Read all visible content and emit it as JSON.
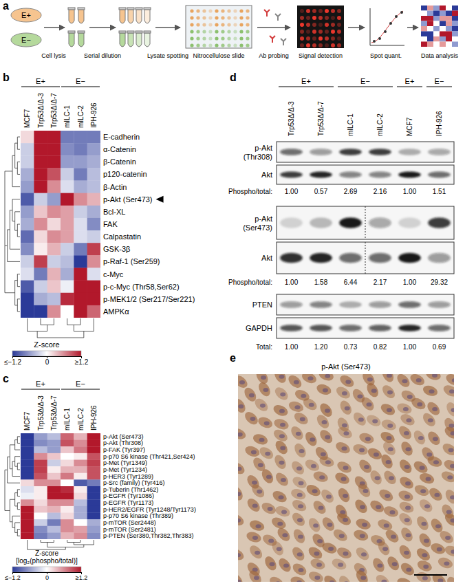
{
  "chart_data": [
    {
      "type": "heatmap",
      "panel": "b",
      "groups": [
        {
          "label": "E+",
          "start": 0,
          "end": 2
        },
        {
          "label": "E−",
          "start": 3,
          "end": 5
        }
      ],
      "columns": [
        "MCF7",
        "Trp53Δ/Δ-3",
        "Trp53Δ/Δ-7",
        "mILC-1",
        "mILC-2",
        "IPH-926"
      ],
      "rows": [
        "E-cadherin",
        "α-Catenin",
        "β-Catenin",
        "p120-catenin",
        "β-Actin",
        "p-Akt (Ser473)",
        "Bcl-XL",
        "FAK",
        "Calpastatin",
        "GSK-3β",
        "p-Raf-1 (Ser259)",
        "c-Myc",
        "p-c-Myc (Thr58,Ser62)",
        "p-MEK1/2 (Ser217/Ser221)",
        "AMPKα"
      ],
      "cells": [
        [
          0.2,
          1.2,
          1.2,
          -0.8,
          -0.8,
          -0.8
        ],
        [
          -0.3,
          1.2,
          1.2,
          -0.7,
          -0.8,
          -0.6
        ],
        [
          -0.3,
          1.2,
          1.2,
          -0.6,
          -0.6,
          -0.5
        ],
        [
          -0.5,
          1.2,
          0.9,
          -0.3,
          -0.8,
          -0.4
        ],
        [
          -0.6,
          1.2,
          0.6,
          -0.2,
          -0.5,
          -0.4
        ],
        [
          -1.0,
          -0.3,
          -0.6,
          1.2,
          0.6,
          0.4
        ],
        [
          -0.6,
          0.3,
          0.6,
          0.5,
          -0.3,
          -0.5
        ],
        [
          -0.5,
          0.6,
          0.2,
          0.5,
          -0.2,
          -0.7
        ],
        [
          -0.9,
          0.2,
          0.6,
          0.5,
          -0.2,
          -0.3
        ],
        [
          -0.7,
          0.1,
          0.4,
          -0.3,
          -0.8,
          1.0
        ],
        [
          -0.3,
          1.0,
          -0.3,
          -0.4,
          -1.2,
          0.6
        ],
        [
          -0.2,
          -0.8,
          0.4,
          -0.5,
          1.2,
          -0.2
        ],
        [
          -1.0,
          -0.3,
          0.3,
          -0.1,
          1.2,
          1.2
        ],
        [
          -1.2,
          -0.5,
          -0.4,
          1.1,
          1.2,
          1.2
        ],
        [
          -1.2,
          -1.2,
          0.6,
          0.0,
          1.2,
          0.8
        ]
      ],
      "row_tree": [
        [
          [
            [
              0,
              1
            ],
            [
              2,
              3
            ]
          ],
          4
        ],
        [
          [
            [
              5,
              [
                6,
                [
                  7,
                  8
                ]
              ]
            ],
            9
          ],
          10
        ],
        [
          [
            11,
            12
          ],
          [
            13,
            14
          ]
        ]
      ],
      "col_tree": [
        [
          0,
          [
            1,
            2
          ]
        ],
        [
          [
            3,
            4
          ],
          5
        ]
      ],
      "arrow_row": 5,
      "colorbar": {
        "title": [
          "Z-score"
        ],
        "range": [
          -1.2,
          1.2
        ],
        "colors": [
          "#2b3a98",
          "#ffffff",
          "#b2182b"
        ],
        "ticks": [
          {
            "value": -1.2,
            "label": "≤−1.2"
          },
          0,
          {
            "value": 1.2,
            "label": "≥1.2"
          }
        ]
      }
    },
    {
      "type": "heatmap",
      "panel": "c",
      "groups": [
        {
          "label": "E+",
          "start": 0,
          "end": 2
        },
        {
          "label": "E−",
          "start": 3,
          "end": 5
        }
      ],
      "columns": [
        "MCF7",
        "Trp53Δ/Δ-3",
        "Trp53Δ/Δ-7",
        "mILC-1",
        "mILC-2",
        "IPH-926"
      ],
      "rows": [
        "p-Akt (Ser473)",
        "p-Akt (Thr308)",
        "p-FAK (Tyr397)",
        "p-p70 S6 kinase (Thr421,Ser424)",
        "p-Met (Tyr1349)",
        "p-Met (Tyr1234)",
        "p-HER3 (Tyr1289)",
        "p-Src (family) (Tyr416)",
        "p-Tuberin (Thr1462)",
        "p-EGFR (Tyr1086)",
        "p-EGFR (Tyr1173)",
        "p-HER2/EGFR (Tyr1248/Tyr1173)",
        "p-p70 S6 kinase (Thr389)",
        "p-mTOR (Ser2448)",
        "p-mTOR (Ser2481)",
        "p-PTEN (Ser380,Thr382,Thr383)"
      ],
      "cells": [
        [
          -1.2,
          -0.6,
          -0.4,
          0.8,
          0.4,
          1.2
        ],
        [
          -1.2,
          -0.7,
          -0.6,
          0.9,
          0.6,
          1.2
        ],
        [
          -1.2,
          -0.4,
          -0.6,
          0.3,
          0.7,
          1.2
        ],
        [
          -1.2,
          0.6,
          0.3,
          0.0,
          0.1,
          0.9
        ],
        [
          -1.2,
          1.0,
          -0.3,
          0.2,
          0.6,
          1.0
        ],
        [
          -1.2,
          1.0,
          0.1,
          0.4,
          0.4,
          0.9
        ],
        [
          -1.2,
          0.9,
          0.3,
          0.7,
          0.1,
          0.9
        ],
        [
          0.2,
          0.6,
          0.6,
          0.0,
          -1.0,
          -0.8
        ],
        [
          -0.2,
          0.1,
          1.2,
          1.1,
          0.1,
          -1.2
        ],
        [
          -0.1,
          0.1,
          1.2,
          1.2,
          0.2,
          -1.2
        ],
        [
          0.6,
          0.2,
          0.6,
          0.6,
          -0.4,
          -1.2
        ],
        [
          1.2,
          0.3,
          0.4,
          0.1,
          -0.5,
          -1.2
        ],
        [
          1.2,
          0.0,
          -0.4,
          0.2,
          -0.5,
          -1.2
        ],
        [
          1.2,
          -0.3,
          -0.8,
          0.6,
          0.0,
          -0.5
        ],
        [
          1.2,
          -0.7,
          -0.4,
          0.6,
          0.5,
          -0.6
        ],
        [
          1.2,
          -0.8,
          -0.6,
          0.4,
          0.6,
          -0.7
        ]
      ],
      "row_tree": [
        [
          [
            [
              [
                0,
                1
              ],
              2
            ],
            [
              [
                3,
                [
                  4,
                  5
                ]
              ],
              6
            ]
          ],
          7
        ],
        [
          [
            [
              8,
              9
            ],
            [
              10,
              11
            ]
          ],
          [
            12,
            [
              13,
              [
                14,
                15
              ]
            ]
          ]
        ]
      ],
      "col_tree": [
        0,
        [
          [
            1,
            2
          ],
          [
            [
              3,
              4
            ],
            5
          ]
        ]
      ],
      "colorbar": {
        "title": [
          "Z-score",
          "[log₂(phospho/total)]"
        ],
        "range": [
          -1.2,
          1.2
        ],
        "colors": [
          "#2b3a98",
          "#ffffff",
          "#b2182b"
        ],
        "ticks": [
          {
            "value": -1.2,
            "label": "≤−1.2"
          },
          0,
          {
            "value": 1.2,
            "label": "≥1.2"
          }
        ]
      }
    }
  ],
  "diagram": {
    "panel": "a",
    "conditions": [
      "E+",
      "E−"
    ],
    "steps": [
      "Cell lysis",
      "Serial dilution",
      "Lysate spotting",
      "Nitrocellulose slide",
      "Ab probing",
      "Signal detection",
      "Spot quant.",
      "Data analysis"
    ]
  },
  "blots": {
    "panel": "d",
    "groups": [
      {
        "label": "E+",
        "start": 0,
        "end": 1
      },
      {
        "label": "E−",
        "start": 2,
        "end": 3
      },
      {
        "label": "E+",
        "start": 4,
        "end": 4
      },
      {
        "label": "E−",
        "start": 5,
        "end": 5
      }
    ],
    "lanes": [
      "Trp53Δ/Δ-3",
      "Trp53Δ/Δ-7",
      "mILC-1",
      "mILC-2",
      "MCF7",
      "IPH-926"
    ],
    "sets": [
      {
        "blots": [
          {
            "label": [
              "p-Akt",
              "(Thr308)"
            ],
            "intensity": [
              0.6,
              0.4,
              0.8,
              0.8,
              0.3,
              0.35
            ]
          },
          {
            "label": [
              "Akt"
            ],
            "intensity": [
              0.8,
              0.9,
              0.5,
              0.5,
              0.95,
              0.6
            ]
          }
        ],
        "ratio_label": "Phospho/total:",
        "ratios": [
          {
            "value": 1,
            "label": "1.00"
          },
          0.57,
          2.69,
          2.16,
          {
            "value": 1,
            "label": "1.00"
          },
          1.51
        ]
      },
      {
        "blots": [
          {
            "label": [
              "p-Akt",
              "(Ser473)"
            ],
            "intensity": [
              0.15,
              0.25,
              0.95,
              0.35,
              0.15,
              0.8
            ],
            "divider_after": 2
          },
          {
            "label": [
              "Akt"
            ],
            "intensity": [
              0.85,
              0.9,
              0.6,
              0.6,
              0.95,
              0.4
            ],
            "divider_after": 2
          }
        ],
        "ratio_label": "Phospho/total:",
        "ratios": [
          {
            "value": 1,
            "label": "1.00"
          },
          1.58,
          6.44,
          2.17,
          {
            "value": 1,
            "label": "1.00"
          },
          29.32
        ]
      },
      {
        "blots": [
          {
            "label": [
              "PTEN"
            ],
            "intensity": [
              0.4,
              0.5,
              0.3,
              0.4,
              0.6,
              0.4
            ]
          },
          {
            "label": [
              "GAPDH"
            ],
            "intensity": [
              0.7,
              0.7,
              0.6,
              0.65,
              0.9,
              0.6
            ]
          }
        ],
        "ratio_label": "Total:",
        "ratios": [
          {
            "value": 1,
            "label": "1.00"
          },
          {
            "value": 1.2,
            "label": "1.20"
          },
          0.73,
          0.82,
          {
            "value": 1,
            "label": "1.00"
          },
          0.69
        ]
      }
    ]
  },
  "image": {
    "panel": "e",
    "title": "p-Akt (Ser473)"
  }
}
